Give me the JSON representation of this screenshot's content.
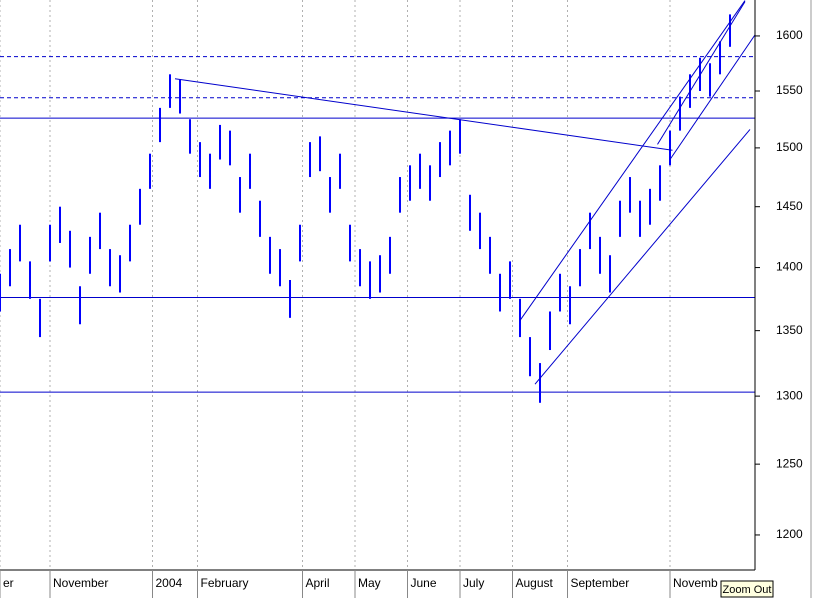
{
  "chart_data": {
    "type": "bar-range",
    "log_scale": true,
    "grid": true,
    "color": "#0000ff",
    "line_color": "#0000cc",
    "grid_color": "#b0b0b0",
    "xlim": [
      0,
      302
    ],
    "ylim": [
      1176,
      1633.5
    ],
    "yticks": [
      1200,
      1250,
      1300,
      1350,
      1400,
      1450,
      1500,
      1550,
      1600
    ],
    "xticks": [
      {
        "value": 0,
        "label": "er"
      },
      {
        "value": 20,
        "label": "November"
      },
      {
        "value": 61,
        "label": "2004"
      },
      {
        "value": 79,
        "label": "February"
      },
      {
        "value": 121,
        "label": "April"
      },
      {
        "value": 142,
        "label": "May"
      },
      {
        "value": 163,
        "label": "June"
      },
      {
        "value": 184,
        "label": "July"
      },
      {
        "value": 205,
        "label": "August"
      },
      {
        "value": 227,
        "label": "September"
      },
      {
        "value": 268,
        "label": "Novemb"
      }
    ],
    "x": [
      0,
      4,
      8,
      12,
      16,
      20,
      24,
      28,
      32,
      36,
      40,
      44,
      48,
      52,
      56,
      60,
      64,
      68,
      72,
      76,
      80,
      84,
      88,
      92,
      96,
      100,
      104,
      108,
      112,
      116,
      120,
      124,
      128,
      132,
      136,
      140,
      144,
      148,
      152,
      156,
      160,
      164,
      168,
      172,
      176,
      180,
      184,
      188,
      192,
      196,
      200,
      204,
      208,
      212,
      216,
      220,
      224,
      228,
      232,
      236,
      240,
      244,
      248,
      252,
      256,
      260,
      264,
      268,
      272,
      276,
      280,
      284,
      288,
      292
    ],
    "high": [
      1395,
      1415,
      1435,
      1405,
      1375,
      1435,
      1450,
      1430,
      1385,
      1425,
      1445,
      1415,
      1410,
      1435,
      1465,
      1495,
      1535,
      1565,
      1560,
      1525,
      1505,
      1495,
      1520,
      1515,
      1475,
      1495,
      1455,
      1425,
      1415,
      1390,
      1435,
      1505,
      1510,
      1475,
      1495,
      1435,
      1415,
      1405,
      1410,
      1425,
      1475,
      1485,
      1495,
      1485,
      1505,
      1515,
      1525,
      1460,
      1445,
      1425,
      1395,
      1405,
      1375,
      1345,
      1325,
      1365,
      1395,
      1385,
      1415,
      1445,
      1425,
      1410,
      1455,
      1475,
      1455,
      1465,
      1485,
      1515,
      1545,
      1565,
      1580,
      1575,
      1595,
      1620
    ],
    "low": [
      1365,
      1385,
      1405,
      1375,
      1345,
      1405,
      1420,
      1400,
      1355,
      1395,
      1415,
      1385,
      1380,
      1405,
      1435,
      1465,
      1505,
      1535,
      1530,
      1495,
      1475,
      1465,
      1490,
      1485,
      1445,
      1465,
      1425,
      1395,
      1385,
      1360,
      1405,
      1475,
      1480,
      1445,
      1465,
      1405,
      1385,
      1375,
      1380,
      1395,
      1445,
      1455,
      1465,
      1455,
      1475,
      1485,
      1495,
      1430,
      1415,
      1395,
      1365,
      1375,
      1345,
      1315,
      1295,
      1335,
      1365,
      1355,
      1385,
      1415,
      1395,
      1380,
      1425,
      1445,
      1425,
      1435,
      1455,
      1485,
      1515,
      1535,
      1550,
      1545,
      1565,
      1590
    ],
    "hlines": [
      {
        "value": 1581,
        "style": "dashed"
      },
      {
        "value": 1544,
        "style": "dashed"
      },
      {
        "value": 1526,
        "style": "solid"
      },
      {
        "value": 1376,
        "style": "solid"
      },
      {
        "value": 1303,
        "style": "solid"
      }
    ],
    "trendlines": [
      {
        "x": [
          70,
          269
        ],
        "y": [
          1561,
          1498
        ]
      },
      {
        "x": [
          208,
          298
        ],
        "y": [
          1358,
          1633
        ]
      },
      {
        "x": [
          214,
          300
        ],
        "y": [
          1309,
          1516
        ]
      },
      {
        "x": [
          263,
          298
        ],
        "y": [
          1503,
          1632
        ]
      },
      {
        "x": [
          268,
          302
        ],
        "y": [
          1490,
          1601
        ]
      }
    ],
    "button": "Zoom Out"
  }
}
